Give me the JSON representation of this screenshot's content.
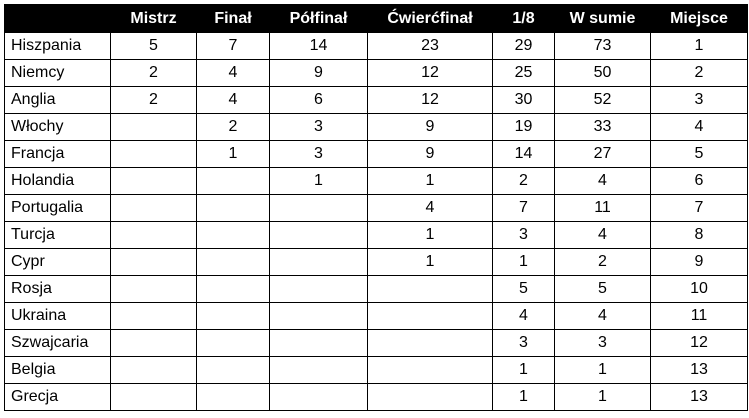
{
  "table": {
    "headers": [
      "",
      "Mistrz",
      "Finał",
      "Półfinał",
      "Ćwierćfinał",
      "1/8",
      "W sumie",
      "Miejsce"
    ],
    "rows": [
      [
        "Hiszpania",
        "5",
        "7",
        "14",
        "23",
        "29",
        "73",
        "1"
      ],
      [
        "Niemcy",
        "2",
        "4",
        "9",
        "12",
        "25",
        "50",
        "2"
      ],
      [
        "Anglia",
        "2",
        "4",
        "6",
        "12",
        "30",
        "52",
        "3"
      ],
      [
        "Włochy",
        "",
        "2",
        "3",
        "9",
        "19",
        "33",
        "4"
      ],
      [
        "Francja",
        "",
        "1",
        "3",
        "9",
        "14",
        "27",
        "5"
      ],
      [
        "Holandia",
        "",
        "",
        "1",
        "1",
        "2",
        "4",
        "6"
      ],
      [
        "Portugalia",
        "",
        "",
        "",
        "4",
        "7",
        "11",
        "7"
      ],
      [
        "Turcja",
        "",
        "",
        "",
        "1",
        "3",
        "4",
        "8"
      ],
      [
        "Cypr",
        "",
        "",
        "",
        "1",
        "1",
        "2",
        "9"
      ],
      [
        "Rosja",
        "",
        "",
        "",
        "",
        "5",
        "5",
        "10"
      ],
      [
        "Ukraina",
        "",
        "",
        "",
        "",
        "4",
        "4",
        "11"
      ],
      [
        "Szwajcaria",
        "",
        "",
        "",
        "",
        "3",
        "3",
        "12"
      ],
      [
        "Belgia",
        "",
        "",
        "",
        "",
        "1",
        "1",
        "13"
      ],
      [
        "Grecja",
        "",
        "",
        "",
        "",
        "1",
        "1",
        "13"
      ]
    ]
  }
}
